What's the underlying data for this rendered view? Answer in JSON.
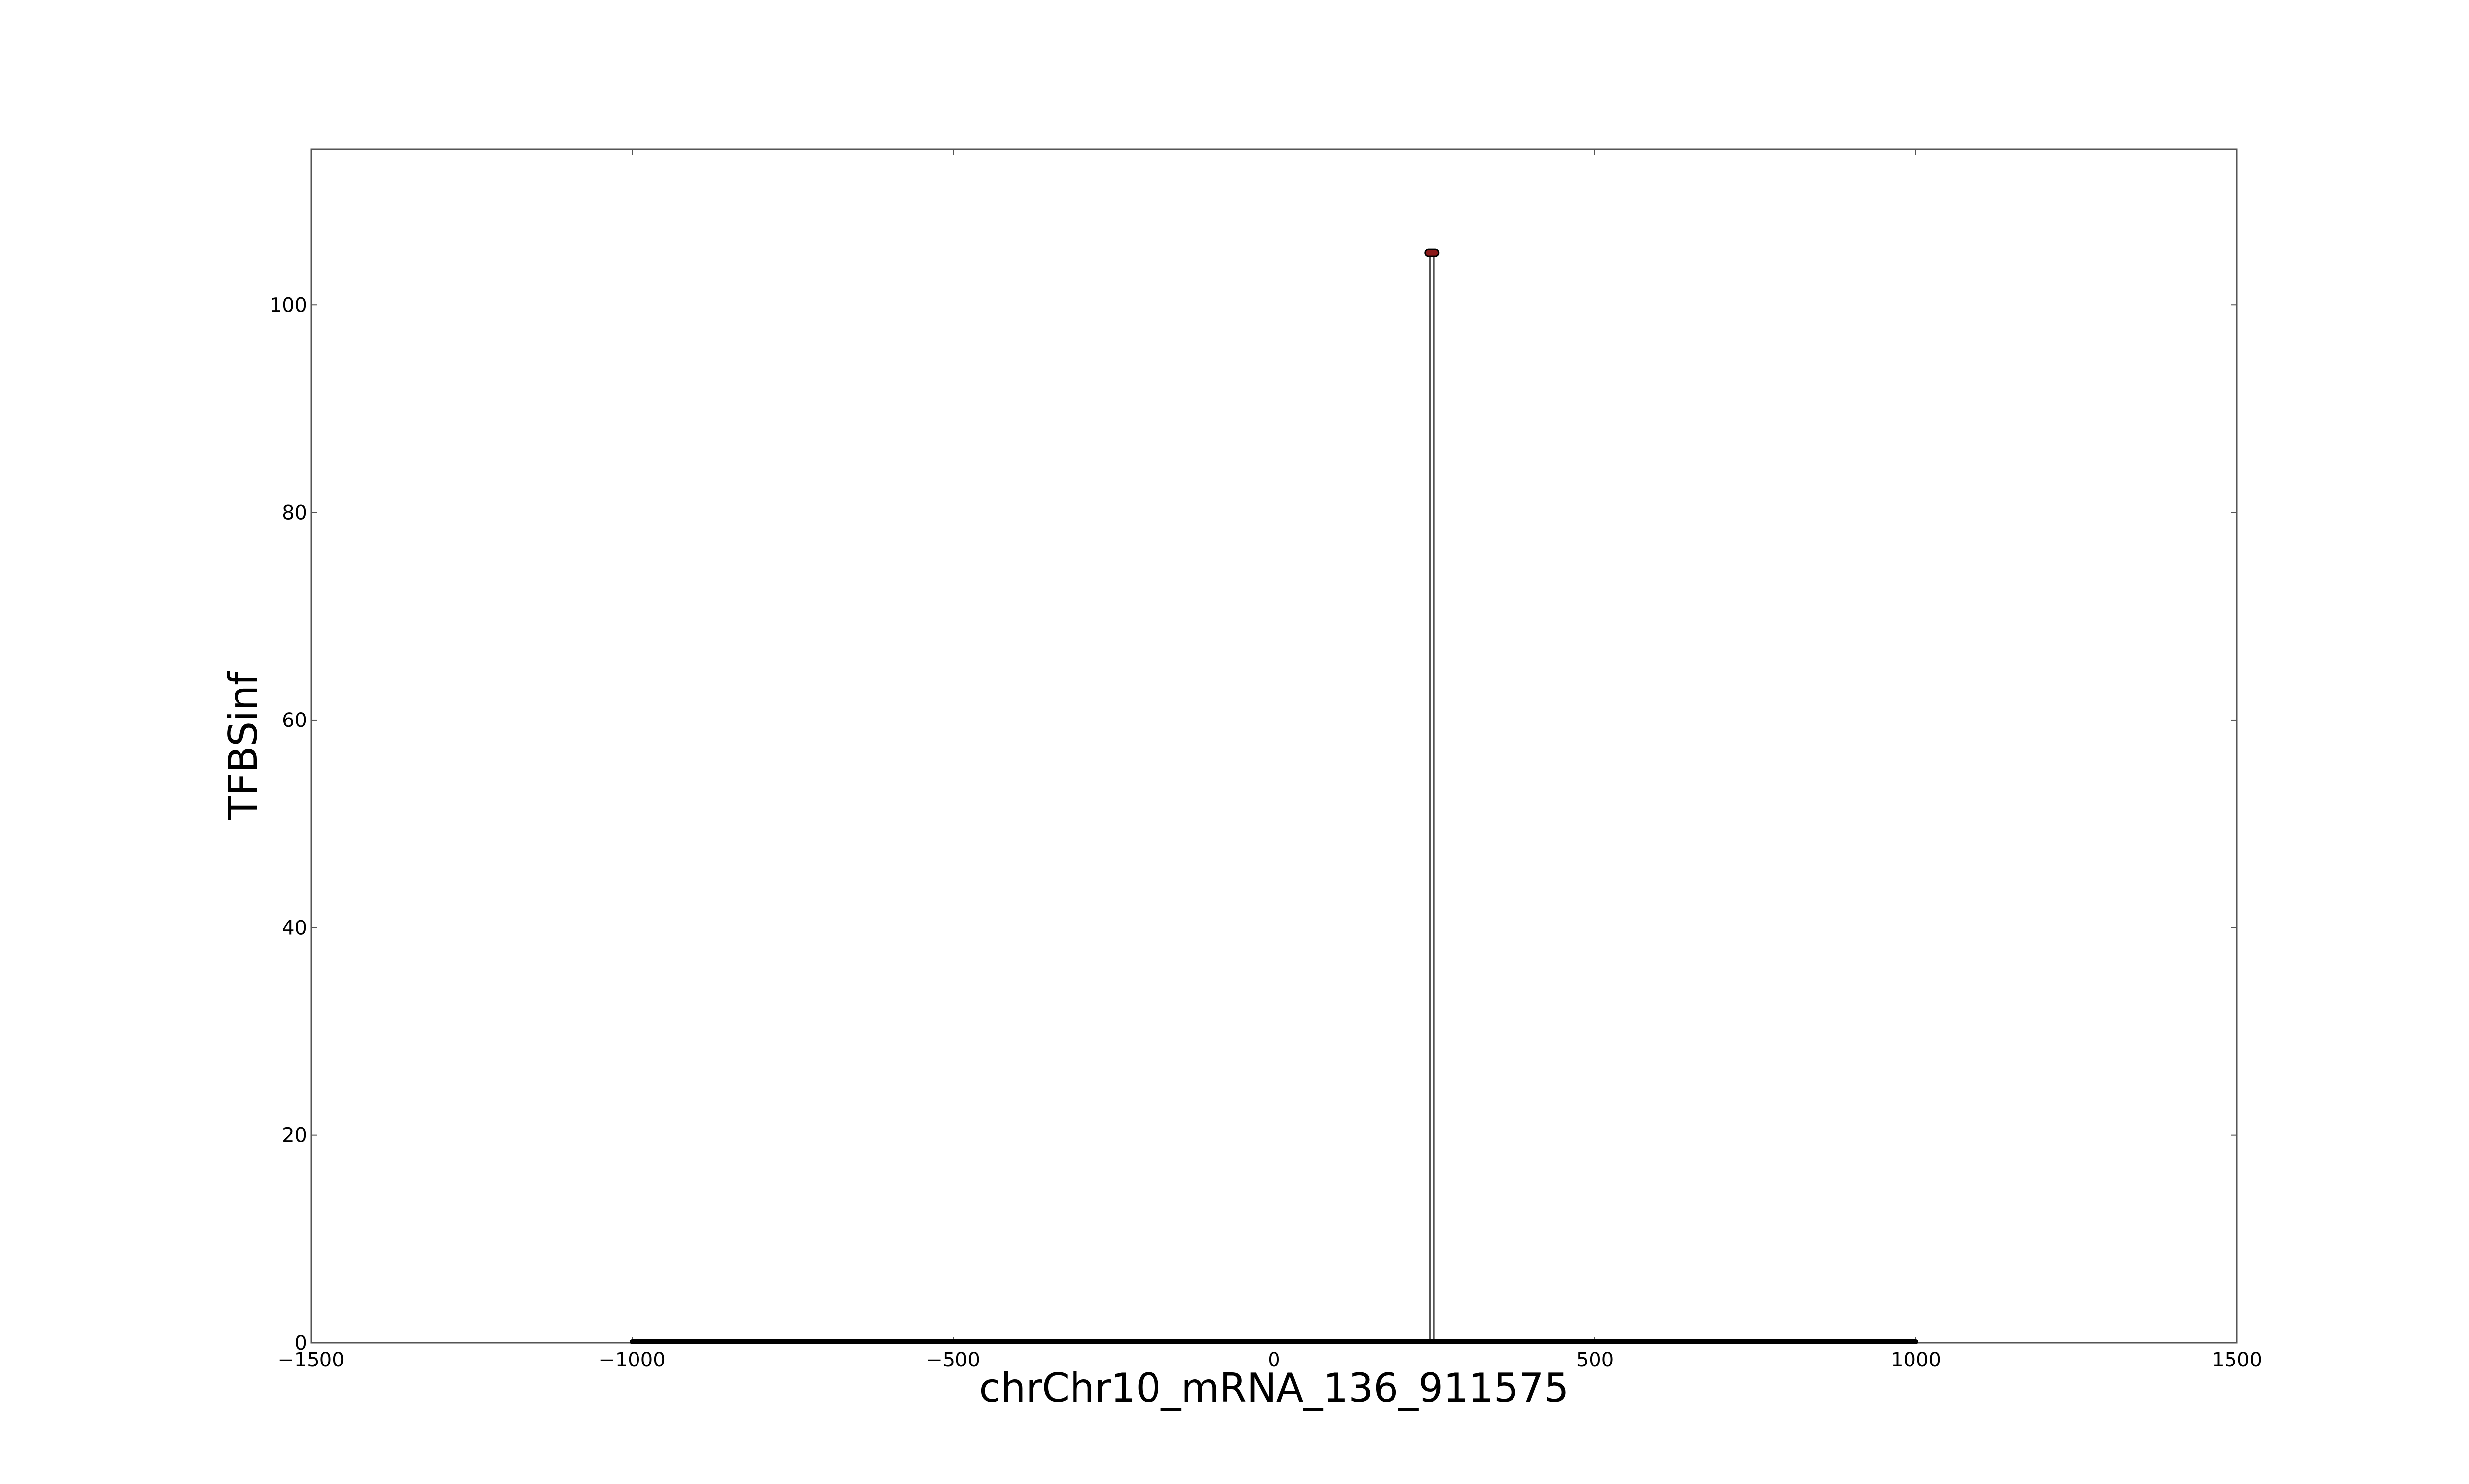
{
  "chart_data": {
    "type": "line",
    "title": "",
    "xlabel": "chrChr10_mRNA_136_911575",
    "ylabel": "TFBSinf",
    "xlim": [
      -1500,
      1500
    ],
    "ylim": [
      0,
      115
    ],
    "x_ticks": [
      -1500,
      -1000,
      -500,
      0,
      500,
      1000,
      1500
    ],
    "x_tick_labels": [
      "−1500",
      "−1000",
      "−500",
      "0",
      "500",
      "1000",
      "1500"
    ],
    "y_ticks": [
      0,
      20,
      40,
      60,
      80,
      100
    ],
    "y_tick_labels": [
      "0",
      "20",
      "40",
      "60",
      "80",
      "100"
    ],
    "grid": false,
    "legend": "none",
    "series": [
      {
        "x": [
          -1000,
          243,
          243,
          246,
          246,
          249,
          249,
          1000
        ],
        "y": [
          0,
          0,
          105,
          105,
          105,
          105,
          0,
          0
        ],
        "color": "#000000"
      }
    ],
    "peak_marker": {
      "x": 246,
      "y": 105,
      "color": "#8b1a1a"
    }
  }
}
